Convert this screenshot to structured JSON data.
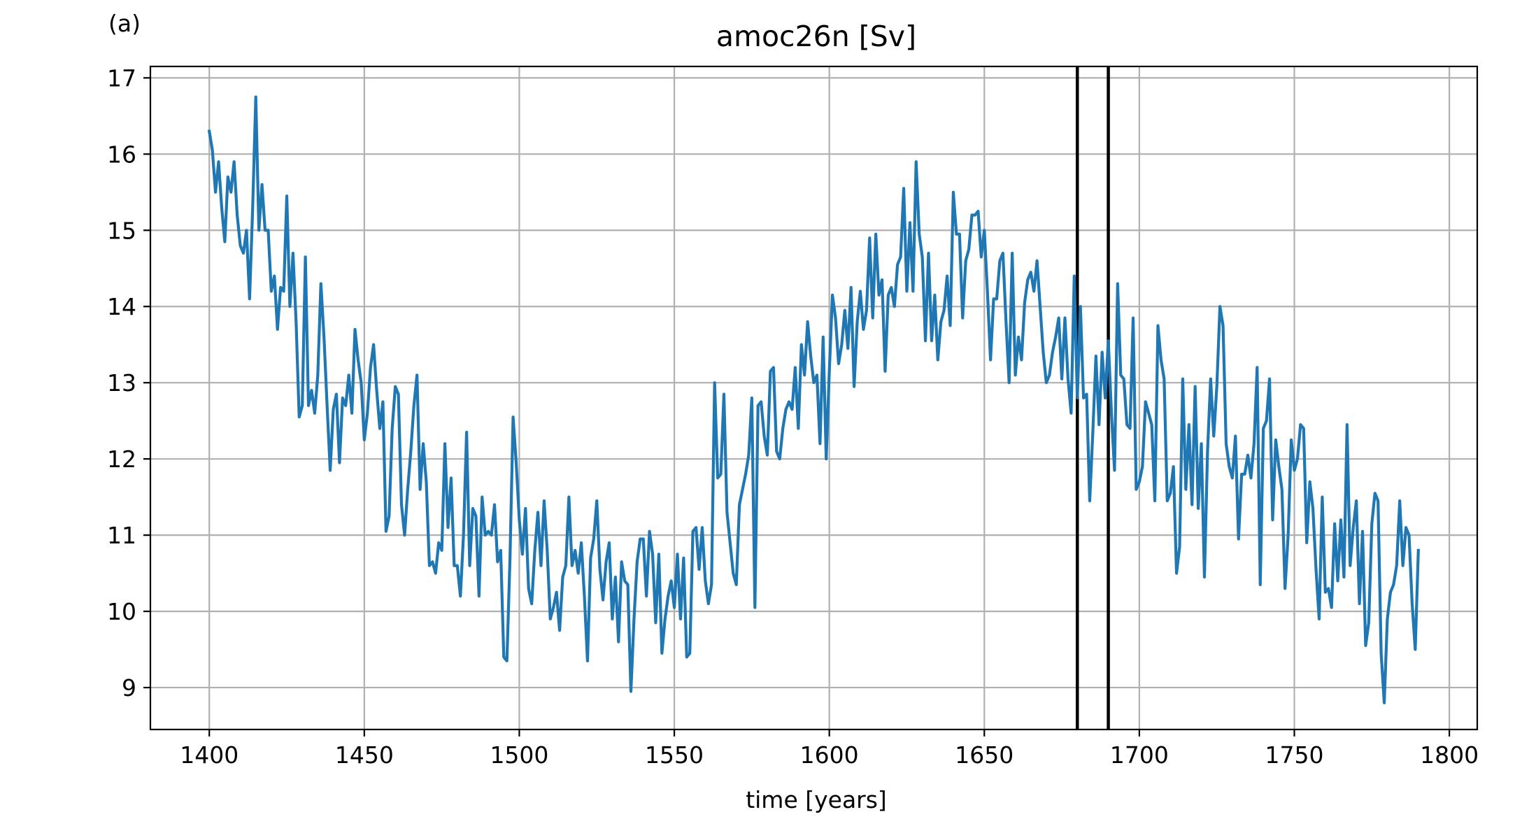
{
  "panel_label": "(a)",
  "chart_data": {
    "type": "line",
    "title": "amoc26n [Sv]",
    "xlabel": "time [years]",
    "ylabel": "",
    "xlim": [
      1381,
      1809
    ],
    "ylim": [
      8.45,
      17.15
    ],
    "xticks": [
      1400,
      1450,
      1500,
      1550,
      1600,
      1650,
      1700,
      1750,
      1800
    ],
    "yticks": [
      9,
      10,
      11,
      12,
      13,
      14,
      15,
      16,
      17
    ],
    "grid": true,
    "line_color": "#1f77b4",
    "vlines": [
      1680,
      1690
    ],
    "vline_color": "#000000",
    "series": [
      {
        "x": [
          1400,
          1401,
          1402,
          1403,
          1404,
          1405,
          1406,
          1407,
          1408,
          1409,
          1410,
          1411,
          1412,
          1413,
          1414,
          1415,
          1416,
          1417,
          1418,
          1419,
          1420,
          1421,
          1422,
          1423,
          1424,
          1425,
          1426,
          1427,
          1428,
          1429,
          1430,
          1431,
          1432,
          1433,
          1434,
          1435,
          1436,
          1437,
          1438,
          1439,
          1440,
          1441,
          1442,
          1443,
          1444,
          1445,
          1446,
          1447,
          1448,
          1449,
          1450,
          1451,
          1452,
          1453,
          1454,
          1455,
          1456,
          1457,
          1458,
          1459,
          1460,
          1461,
          1462,
          1463,
          1464,
          1465,
          1466,
          1467,
          1468,
          1469,
          1470,
          1471,
          1472,
          1473,
          1474,
          1475,
          1476,
          1477,
          1478,
          1479,
          1480,
          1481,
          1482,
          1483,
          1484,
          1485,
          1486,
          1487,
          1488,
          1489,
          1490,
          1491,
          1492,
          1493,
          1494,
          1495,
          1496,
          1497,
          1498,
          1499,
          1500,
          1501,
          1502,
          1503,
          1504,
          1505,
          1506,
          1507,
          1508,
          1509,
          1510,
          1511,
          1512,
          1513,
          1514,
          1515,
          1516,
          1517,
          1518,
          1519,
          1520,
          1521,
          1522,
          1523,
          1524,
          1525,
          1526,
          1527,
          1528,
          1529,
          1530,
          1531,
          1532,
          1533,
          1534,
          1535,
          1536,
          1537,
          1538,
          1539,
          1540,
          1541,
          1542,
          1543,
          1544,
          1545,
          1546,
          1547,
          1548,
          1549,
          1550,
          1551,
          1552,
          1553,
          1554,
          1555,
          1556,
          1557,
          1558,
          1559,
          1560,
          1561,
          1562,
          1563,
          1564,
          1565,
          1566,
          1567,
          1568,
          1569,
          1570,
          1571,
          1572,
          1573,
          1574,
          1575,
          1576,
          1577,
          1578,
          1579,
          1580,
          1581,
          1582,
          1583,
          1584,
          1585,
          1586,
          1587,
          1588,
          1589,
          1590,
          1591,
          1592,
          1593,
          1594,
          1595,
          1596,
          1597,
          1598,
          1599,
          1600,
          1601,
          1602,
          1603,
          1604,
          1605,
          1606,
          1607,
          1608,
          1609,
          1610,
          1611,
          1612,
          1613,
          1614,
          1615,
          1616,
          1617,
          1618,
          1619,
          1620,
          1621,
          1622,
          1623,
          1624,
          1625,
          1626,
          1627,
          1628,
          1629,
          1630,
          1631,
          1632,
          1633,
          1634,
          1635,
          1636,
          1637,
          1638,
          1639,
          1640,
          1641,
          1642,
          1643,
          1644,
          1645,
          1646,
          1647,
          1648,
          1649,
          1650,
          1651,
          1652,
          1653,
          1654,
          1655,
          1656,
          1657,
          1658,
          1659,
          1660,
          1661,
          1662,
          1663,
          1664,
          1665,
          1666,
          1667,
          1668,
          1669,
          1670,
          1671,
          1672,
          1673,
          1674,
          1675,
          1676,
          1677,
          1678,
          1679,
          1680,
          1681,
          1682,
          1683,
          1684,
          1685,
          1686,
          1687,
          1688,
          1689,
          1690,
          1691,
          1692,
          1693,
          1694,
          1695,
          1696,
          1697,
          1698,
          1699,
          1700,
          1701,
          1702,
          1703,
          1704,
          1705,
          1706,
          1707,
          1708,
          1709,
          1710,
          1711,
          1712,
          1713,
          1714,
          1715,
          1716,
          1717,
          1718,
          1719,
          1720,
          1721,
          1722,
          1723,
          1724,
          1725,
          1726,
          1727,
          1728,
          1729,
          1730,
          1731,
          1732,
          1733,
          1734,
          1735,
          1736,
          1737,
          1738,
          1739,
          1740,
          1741,
          1742,
          1743,
          1744,
          1745,
          1746,
          1747,
          1748,
          1749,
          1750,
          1751,
          1752,
          1753,
          1754,
          1755,
          1756,
          1757,
          1758,
          1759,
          1760,
          1761,
          1762,
          1763,
          1764,
          1765,
          1766,
          1767,
          1768,
          1769,
          1770,
          1771,
          1772,
          1773,
          1774,
          1775,
          1776,
          1777,
          1778,
          1779,
          1780,
          1781,
          1782,
          1783,
          1784,
          1785,
          1786,
          1787,
          1788,
          1789,
          1790
        ],
        "values": [
          16.3,
          16.05,
          15.5,
          15.9,
          15.3,
          14.85,
          15.7,
          15.5,
          15.9,
          15.2,
          14.8,
          14.7,
          15.0,
          14.1,
          15.3,
          16.75,
          15.0,
          15.6,
          15.0,
          15.0,
          14.2,
          14.4,
          13.7,
          14.25,
          14.2,
          15.45,
          14.0,
          14.7,
          13.8,
          12.55,
          12.7,
          14.65,
          12.7,
          12.9,
          12.6,
          13.1,
          14.3,
          13.6,
          12.7,
          11.85,
          12.65,
          12.85,
          11.95,
          12.8,
          12.7,
          13.1,
          12.6,
          13.7,
          13.3,
          13.0,
          12.25,
          12.6,
          13.2,
          13.5,
          12.9,
          12.4,
          12.75,
          11.05,
          11.25,
          12.4,
          12.95,
          12.85,
          11.4,
          11.0,
          11.6,
          12.1,
          12.7,
          13.1,
          11.6,
          12.2,
          11.7,
          10.6,
          10.65,
          10.5,
          10.9,
          10.8,
          12.2,
          11.1,
          11.75,
          10.6,
          10.6,
          10.2,
          11.0,
          12.35,
          10.6,
          11.35,
          11.25,
          10.2,
          11.5,
          11.0,
          11.05,
          11.0,
          11.4,
          10.65,
          10.8,
          9.4,
          9.35,
          10.7,
          12.55,
          11.95,
          11.2,
          10.75,
          11.35,
          10.3,
          10.1,
          10.8,
          11.3,
          10.6,
          11.45,
          10.8,
          9.9,
          10.05,
          10.25,
          9.75,
          10.45,
          10.6,
          11.5,
          10.6,
          10.8,
          10.5,
          10.9,
          10.2,
          9.35,
          10.7,
          10.95,
          11.45,
          10.55,
          10.15,
          10.65,
          10.9,
          9.9,
          10.45,
          9.6,
          10.65,
          10.4,
          10.35,
          8.95,
          9.9,
          10.65,
          10.95,
          10.95,
          10.2,
          11.05,
          10.75,
          9.85,
          10.75,
          9.45,
          9.9,
          10.2,
          10.4,
          10.05,
          10.75,
          9.9,
          10.7,
          9.4,
          9.45,
          11.05,
          11.1,
          10.55,
          11.1,
          10.4,
          10.1,
          10.35,
          13.0,
          11.75,
          11.8,
          12.85,
          11.3,
          10.9,
          10.5,
          10.35,
          11.4,
          11.6,
          11.8,
          12.05,
          12.8,
          10.05,
          12.7,
          12.75,
          12.3,
          12.05,
          13.15,
          13.2,
          12.1,
          12.0,
          12.4,
          12.65,
          12.75,
          12.65,
          13.2,
          12.4,
          13.5,
          13.1,
          13.8,
          13.35,
          13.0,
          13.1,
          12.2,
          13.6,
          12.0,
          13.15,
          14.15,
          13.85,
          13.25,
          13.5,
          13.95,
          13.45,
          14.25,
          12.95,
          13.8,
          14.2,
          13.7,
          13.95,
          14.9,
          13.85,
          14.95,
          14.15,
          14.35,
          13.15,
          14.15,
          14.25,
          14.0,
          14.55,
          14.65,
          15.55,
          14.2,
          15.1,
          14.2,
          15.9,
          14.95,
          14.65,
          13.55,
          14.7,
          13.55,
          14.15,
          13.3,
          13.8,
          13.95,
          14.4,
          13.75,
          15.5,
          14.95,
          14.95,
          13.85,
          14.6,
          14.75,
          15.2,
          15.2,
          15.25,
          14.65,
          15.0,
          14.2,
          13.3,
          14.1,
          14.1,
          14.6,
          14.7,
          13.8,
          13.0,
          14.7,
          13.1,
          13.6,
          13.3,
          14.05,
          14.35,
          14.45,
          14.2,
          14.6,
          14.0,
          13.4,
          13.0,
          13.1,
          13.4,
          13.6,
          13.85,
          13.05,
          13.85,
          13.05,
          12.6,
          14.4,
          12.8,
          14.0,
          12.8,
          12.85,
          11.45,
          12.35,
          13.35,
          12.45,
          13.4,
          12.8,
          13.55,
          12.6,
          11.85,
          14.3,
          13.1,
          13.05,
          12.45,
          12.4,
          13.85,
          11.6,
          11.7,
          11.9,
          12.75,
          12.6,
          12.45,
          11.45,
          13.75,
          13.3,
          13.05,
          11.45,
          11.55,
          11.9,
          10.5,
          10.85,
          13.05,
          11.6,
          12.45,
          11.4,
          12.95,
          11.35,
          12.2,
          10.45,
          12.1,
          13.05,
          12.3,
          12.95,
          14.0,
          13.75,
          12.2,
          11.9,
          11.75,
          12.3,
          10.95,
          11.8,
          11.8,
          12.05,
          11.75,
          12.2,
          13.2,
          10.35,
          12.4,
          12.5,
          13.05,
          11.2,
          12.25,
          11.9,
          11.6,
          10.3,
          11.0,
          12.25,
          11.85,
          12.0,
          12.45,
          12.4,
          10.9,
          11.7,
          11.35,
          10.55,
          9.9,
          11.5,
          10.25,
          10.3,
          10.05,
          11.15,
          10.4,
          11.2,
          10.45,
          12.45,
          10.6,
          11.1,
          11.45,
          10.1,
          11.05,
          9.55,
          9.85,
          11.15,
          11.55,
          11.45,
          9.45,
          8.8,
          9.9,
          10.25,
          10.35,
          10.6,
          11.45,
          10.6,
          11.1,
          11.0,
          10.1,
          9.5,
          10.8
        ]
      }
    ]
  }
}
